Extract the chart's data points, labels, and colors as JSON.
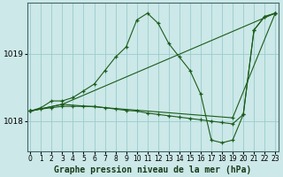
{
  "background_color": "#cce8e8",
  "grid_color": "#99cccc",
  "line_color": "#1a5c1a",
  "marker_color": "#1a5c1a",
  "xlabel": "Graphe pression niveau de la mer (hPa)",
  "xlabel_fontsize": 7,
  "xticks": [
    0,
    1,
    2,
    3,
    4,
    5,
    6,
    7,
    8,
    9,
    10,
    11,
    12,
    13,
    14,
    15,
    16,
    17,
    18,
    19,
    20,
    21,
    22,
    23
  ],
  "yticks": [
    1018,
    1019
  ],
  "ylim": [
    1017.55,
    1019.75
  ],
  "xlim": [
    -0.3,
    23.3
  ],
  "series": [
    {
      "x": [
        0,
        3,
        23
      ],
      "y": [
        1018.15,
        1018.25,
        1019.6
      ]
    },
    {
      "x": [
        0,
        3,
        19,
        23
      ],
      "y": [
        1018.15,
        1018.25,
        1018.05,
        1019.6
      ]
    },
    {
      "x": [
        0,
        1,
        2,
        3,
        4,
        5,
        6,
        7,
        8,
        9,
        10,
        11,
        12,
        13,
        14,
        15,
        16,
        17,
        18,
        19,
        20,
        21,
        22,
        23
      ],
      "y": [
        1018.15,
        1018.2,
        1018.3,
        1018.3,
        1018.35,
        1018.45,
        1018.55,
        1018.75,
        1018.95,
        1019.1,
        1019.5,
        1019.6,
        1019.45,
        1019.15,
        1018.95,
        1018.75,
        1018.4,
        1017.72,
        1017.68,
        1017.72,
        1018.1,
        1019.35,
        1019.55,
        1019.6
      ]
    },
    {
      "x": [
        0,
        1,
        2,
        3,
        4,
        5,
        6,
        7,
        8,
        9,
        10,
        11,
        12,
        13,
        14,
        15,
        16,
        17,
        18,
        19,
        20,
        21,
        22,
        23
      ],
      "y": [
        1018.15,
        1018.18,
        1018.2,
        1018.22,
        1018.22,
        1018.22,
        1018.22,
        1018.2,
        1018.18,
        1018.16,
        1018.15,
        1018.12,
        1018.1,
        1018.08,
        1018.06,
        1018.04,
        1018.02,
        1018.0,
        1017.98,
        1017.96,
        1018.1,
        1019.35,
        1019.55,
        1019.6
      ]
    }
  ]
}
